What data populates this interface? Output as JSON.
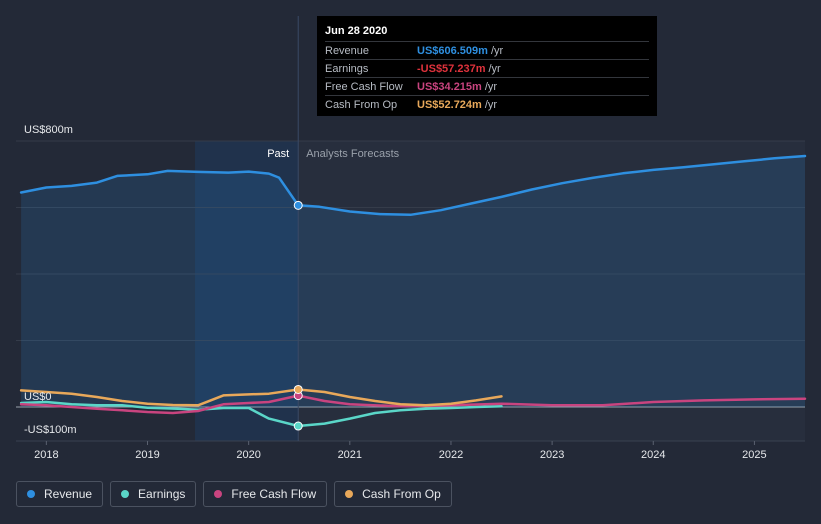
{
  "tooltip": {
    "date": "Jun 28 2020",
    "rows": [
      {
        "name": "Revenue",
        "value": "US$606.509m",
        "unit": "/yr",
        "color": "#2e8fe0"
      },
      {
        "name": "Earnings",
        "value": "-US$57.237m",
        "unit": "/yr",
        "color": "#e0323c"
      },
      {
        "name": "Free Cash Flow",
        "value": "US$34.215m",
        "unit": "/yr",
        "color": "#c9447f"
      },
      {
        "name": "Cash From Op",
        "value": "US$52.724m",
        "unit": "/yr",
        "color": "#e8a85a"
      }
    ]
  },
  "legend": [
    {
      "label": "Revenue",
      "color": "#2e8fe0"
    },
    {
      "label": "Earnings",
      "color": "#5ad6c8"
    },
    {
      "label": "Free Cash Flow",
      "color": "#c9447f"
    },
    {
      "label": "Cash From Op",
      "color": "#e8a85a"
    }
  ],
  "chart_data": {
    "type": "line",
    "xlabel": "",
    "ylabel": "",
    "y_tick_labels": {
      "top": "US$800m",
      "zero": "US$0",
      "bottom": "-US$100m"
    },
    "ylim": [
      -100,
      800
    ],
    "x_ticks": [
      2018,
      2019,
      2020,
      2021,
      2022,
      2023,
      2024,
      2025
    ],
    "xlim": [
      2017.7,
      2025.5
    ],
    "past_label": "Past",
    "forecast_label": "Analysts Forecasts",
    "divider_x": 2020.49,
    "shaded_start_x": 2019.47,
    "grid": true,
    "series": [
      {
        "name": "Revenue",
        "color": "#2e8fe0",
        "area": true,
        "points": [
          [
            2017.75,
            645
          ],
          [
            2018.0,
            660
          ],
          [
            2018.25,
            665
          ],
          [
            2018.5,
            675
          ],
          [
            2018.7,
            695
          ],
          [
            2019.0,
            700
          ],
          [
            2019.2,
            710
          ],
          [
            2019.5,
            707
          ],
          [
            2019.8,
            705
          ],
          [
            2020.0,
            708
          ],
          [
            2020.2,
            702
          ],
          [
            2020.3,
            690
          ],
          [
            2020.49,
            606.5
          ],
          [
            2020.7,
            602
          ],
          [
            2021.0,
            588
          ],
          [
            2021.3,
            580
          ],
          [
            2021.6,
            578
          ],
          [
            2021.9,
            592
          ],
          [
            2022.2,
            612
          ],
          [
            2022.5,
            632
          ],
          [
            2022.8,
            654
          ],
          [
            2023.1,
            673
          ],
          [
            2023.4,
            689
          ],
          [
            2023.7,
            703
          ],
          [
            2024.0,
            713
          ],
          [
            2024.3,
            721
          ],
          [
            2024.6,
            730
          ],
          [
            2024.9,
            739
          ],
          [
            2025.2,
            748
          ],
          [
            2025.5,
            755
          ]
        ]
      },
      {
        "name": "Earnings",
        "color": "#5ad6c8",
        "points": [
          [
            2017.75,
            12
          ],
          [
            2018.0,
            15
          ],
          [
            2018.25,
            8
          ],
          [
            2018.5,
            5
          ],
          [
            2018.75,
            5
          ],
          [
            2019.0,
            -2
          ],
          [
            2019.3,
            -5
          ],
          [
            2019.5,
            -8
          ],
          [
            2019.75,
            -3
          ],
          [
            2020.0,
            -3
          ],
          [
            2020.2,
            -35
          ],
          [
            2020.49,
            -57.2
          ],
          [
            2020.75,
            -50
          ],
          [
            2021.0,
            -35
          ],
          [
            2021.25,
            -18
          ],
          [
            2021.5,
            -10
          ],
          [
            2021.75,
            -5
          ],
          [
            2022.0,
            -3
          ],
          [
            2022.25,
            0
          ],
          [
            2022.5,
            2
          ]
        ]
      },
      {
        "name": "Free Cash Flow",
        "color": "#c9447f",
        "points": [
          [
            2017.75,
            8
          ],
          [
            2018.0,
            5
          ],
          [
            2018.25,
            0
          ],
          [
            2018.5,
            -5
          ],
          [
            2018.75,
            -10
          ],
          [
            2019.0,
            -15
          ],
          [
            2019.25,
            -18
          ],
          [
            2019.5,
            -12
          ],
          [
            2019.75,
            8
          ],
          [
            2020.0,
            12
          ],
          [
            2020.2,
            15
          ],
          [
            2020.49,
            34.2
          ],
          [
            2020.75,
            18
          ],
          [
            2021.0,
            8
          ],
          [
            2021.5,
            2
          ],
          [
            2022.0,
            5
          ],
          [
            2022.5,
            10
          ],
          [
            2023.0,
            5
          ],
          [
            2023.5,
            5
          ],
          [
            2024.0,
            15
          ],
          [
            2024.5,
            20
          ],
          [
            2025.0,
            23
          ],
          [
            2025.5,
            25
          ]
        ]
      },
      {
        "name": "Cash From Op",
        "color": "#e8a85a",
        "points": [
          [
            2017.75,
            50
          ],
          [
            2018.0,
            45
          ],
          [
            2018.25,
            40
          ],
          [
            2018.5,
            30
          ],
          [
            2018.75,
            18
          ],
          [
            2019.0,
            10
          ],
          [
            2019.25,
            6
          ],
          [
            2019.5,
            5
          ],
          [
            2019.75,
            35
          ],
          [
            2020.0,
            38
          ],
          [
            2020.2,
            40
          ],
          [
            2020.49,
            52.7
          ],
          [
            2020.75,
            45
          ],
          [
            2021.0,
            30
          ],
          [
            2021.25,
            18
          ],
          [
            2021.5,
            8
          ],
          [
            2021.75,
            5
          ],
          [
            2022.0,
            10
          ],
          [
            2022.25,
            20
          ],
          [
            2022.5,
            32
          ]
        ]
      }
    ]
  }
}
